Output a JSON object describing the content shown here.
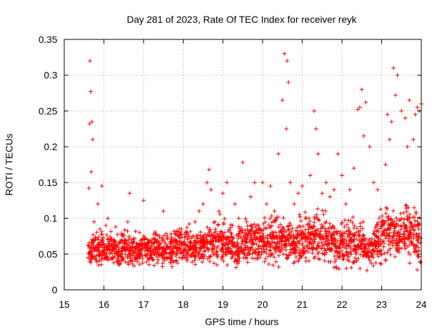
{
  "chart_data": {
    "type": "scatter",
    "title": "Day 281 of 2023, Rate Of TEC Index for receiver reyk",
    "xlabel": "GPS time / hours",
    "ylabel": "ROTI / TECUs",
    "xlim": [
      15,
      24
    ],
    "ylim": [
      0,
      0.35
    ],
    "xticks": [
      "15",
      "16",
      "17",
      "18",
      "19",
      "20",
      "21",
      "22",
      "23",
      "24"
    ],
    "yticks": [
      "0",
      "0.05",
      "0.1",
      "0.15",
      "0.2",
      "0.25",
      "0.3",
      "0.35"
    ],
    "grid": true,
    "marker": "+",
    "color": "#ff0000",
    "series": [
      {
        "name": "ROTI",
        "x": [
          15.6,
          15.62,
          15.64,
          15.65,
          15.67,
          15.68,
          15.7,
          15.72,
          15.75,
          15.8,
          15.85,
          15.9,
          15.95,
          16.0,
          16.05,
          16.1,
          16.15,
          16.2,
          16.3,
          16.4,
          16.5,
          16.6,
          16.65,
          16.7,
          16.8,
          16.9,
          17.0,
          17.1,
          17.2,
          17.3,
          17.4,
          17.5,
          17.6,
          17.7,
          17.8,
          17.9,
          18.0,
          18.1,
          18.2,
          18.3,
          18.4,
          18.5,
          18.6,
          18.65,
          18.7,
          18.8,
          18.9,
          19.0,
          19.1,
          19.2,
          19.3,
          19.4,
          19.5,
          19.6,
          19.7,
          19.8,
          19.9,
          20.0,
          20.1,
          20.2,
          20.3,
          20.4,
          20.5,
          20.55,
          20.6,
          20.62,
          20.65,
          20.7,
          20.8,
          20.9,
          21.0,
          21.1,
          21.2,
          21.3,
          21.35,
          21.4,
          21.5,
          21.6,
          21.7,
          21.8,
          21.9,
          22.0,
          22.1,
          22.2,
          22.3,
          22.4,
          22.45,
          22.5,
          22.55,
          22.6,
          22.7,
          22.8,
          22.9,
          23.0,
          23.1,
          23.15,
          23.2,
          23.25,
          23.3,
          23.35,
          23.4,
          23.5,
          23.6,
          23.65,
          23.7,
          23.8,
          23.85,
          23.9,
          23.95,
          24.0
        ],
        "y": [
          0.045,
          0.142,
          0.232,
          0.32,
          0.277,
          0.165,
          0.235,
          0.21,
          0.095,
          0.06,
          0.12,
          0.085,
          0.145,
          0.055,
          0.09,
          0.1,
          0.07,
          0.06,
          0.088,
          0.065,
          0.075,
          0.095,
          0.135,
          0.07,
          0.06,
          0.08,
          0.125,
          0.065,
          0.045,
          0.07,
          0.06,
          0.11,
          0.075,
          0.055,
          0.068,
          0.085,
          0.065,
          0.08,
          0.072,
          0.095,
          0.11,
          0.12,
          0.15,
          0.168,
          0.14,
          0.095,
          0.11,
          0.135,
          0.15,
          0.08,
          0.12,
          0.1,
          0.178,
          0.095,
          0.13,
          0.15,
          0.09,
          0.15,
          0.12,
          0.145,
          0.11,
          0.19,
          0.265,
          0.33,
          0.225,
          0.32,
          0.29,
          0.15,
          0.12,
          0.135,
          0.145,
          0.1,
          0.16,
          0.25,
          0.225,
          0.19,
          0.135,
          0.15,
          0.13,
          0.14,
          0.19,
          0.16,
          0.12,
          0.14,
          0.17,
          0.252,
          0.255,
          0.28,
          0.215,
          0.262,
          0.2,
          0.15,
          0.14,
          0.095,
          0.175,
          0.245,
          0.21,
          0.235,
          0.31,
          0.272,
          0.3,
          0.25,
          0.24,
          0.2,
          0.265,
          0.21,
          0.245,
          0.255,
          0.25,
          0.26
        ]
      }
    ],
    "density": {
      "x_start": 15.6,
      "x_end": 24.0,
      "x_step": 0.1,
      "low": [
        0.025,
        0.03,
        0.025,
        0.03,
        0.028,
        0.027,
        0.025,
        0.024,
        0.025,
        0.026,
        0.025,
        0.024,
        0.022,
        0.025,
        0.026,
        0.027,
        0.025,
        0.025,
        0.024,
        0.025,
        0.026,
        0.027,
        0.028,
        0.03,
        0.028,
        0.027,
        0.025,
        0.026,
        0.027,
        0.028,
        0.029,
        0.03,
        0.028,
        0.026,
        0.025,
        0.024,
        0.022,
        0.02,
        0.022,
        0.024,
        0.025,
        0.026,
        0.025,
        0.024,
        0.022,
        0.02,
        0.018,
        0.02,
        0.025,
        0.03,
        0.03,
        0.028,
        0.025,
        0.024,
        0.022,
        0.025,
        0.028,
        0.03,
        0.03,
        0.028,
        0.026,
        0.025,
        0.024,
        0.022,
        0.02,
        0.018,
        0.018,
        0.02,
        0.022,
        0.02,
        0.018,
        0.016,
        0.03,
        0.028,
        0.026,
        0.025,
        0.028,
        0.03,
        0.032,
        0.03,
        0.028,
        0.025,
        0.022,
        0.02,
        0.018
      ],
      "high": [
        0.07,
        0.08,
        0.085,
        0.085,
        0.078,
        0.08,
        0.078,
        0.076,
        0.08,
        0.082,
        0.08,
        0.078,
        0.076,
        0.08,
        0.082,
        0.085,
        0.088,
        0.086,
        0.082,
        0.08,
        0.078,
        0.08,
        0.082,
        0.085,
        0.086,
        0.088,
        0.085,
        0.082,
        0.085,
        0.088,
        0.09,
        0.092,
        0.095,
        0.098,
        0.095,
        0.092,
        0.09,
        0.092,
        0.095,
        0.098,
        0.1,
        0.102,
        0.1,
        0.098,
        0.102,
        0.105,
        0.108,
        0.11,
        0.105,
        0.1,
        0.098,
        0.095,
        0.098,
        0.1,
        0.102,
        0.105,
        0.108,
        0.11,
        0.106,
        0.104,
        0.1,
        0.098,
        0.095,
        0.098,
        0.1,
        0.102,
        0.105,
        0.1,
        0.095,
        0.09,
        0.085,
        0.08,
        0.095,
        0.105,
        0.11,
        0.12,
        0.125,
        0.115,
        0.11,
        0.12,
        0.13,
        0.125,
        0.115,
        0.11,
        0.12
      ]
    }
  }
}
